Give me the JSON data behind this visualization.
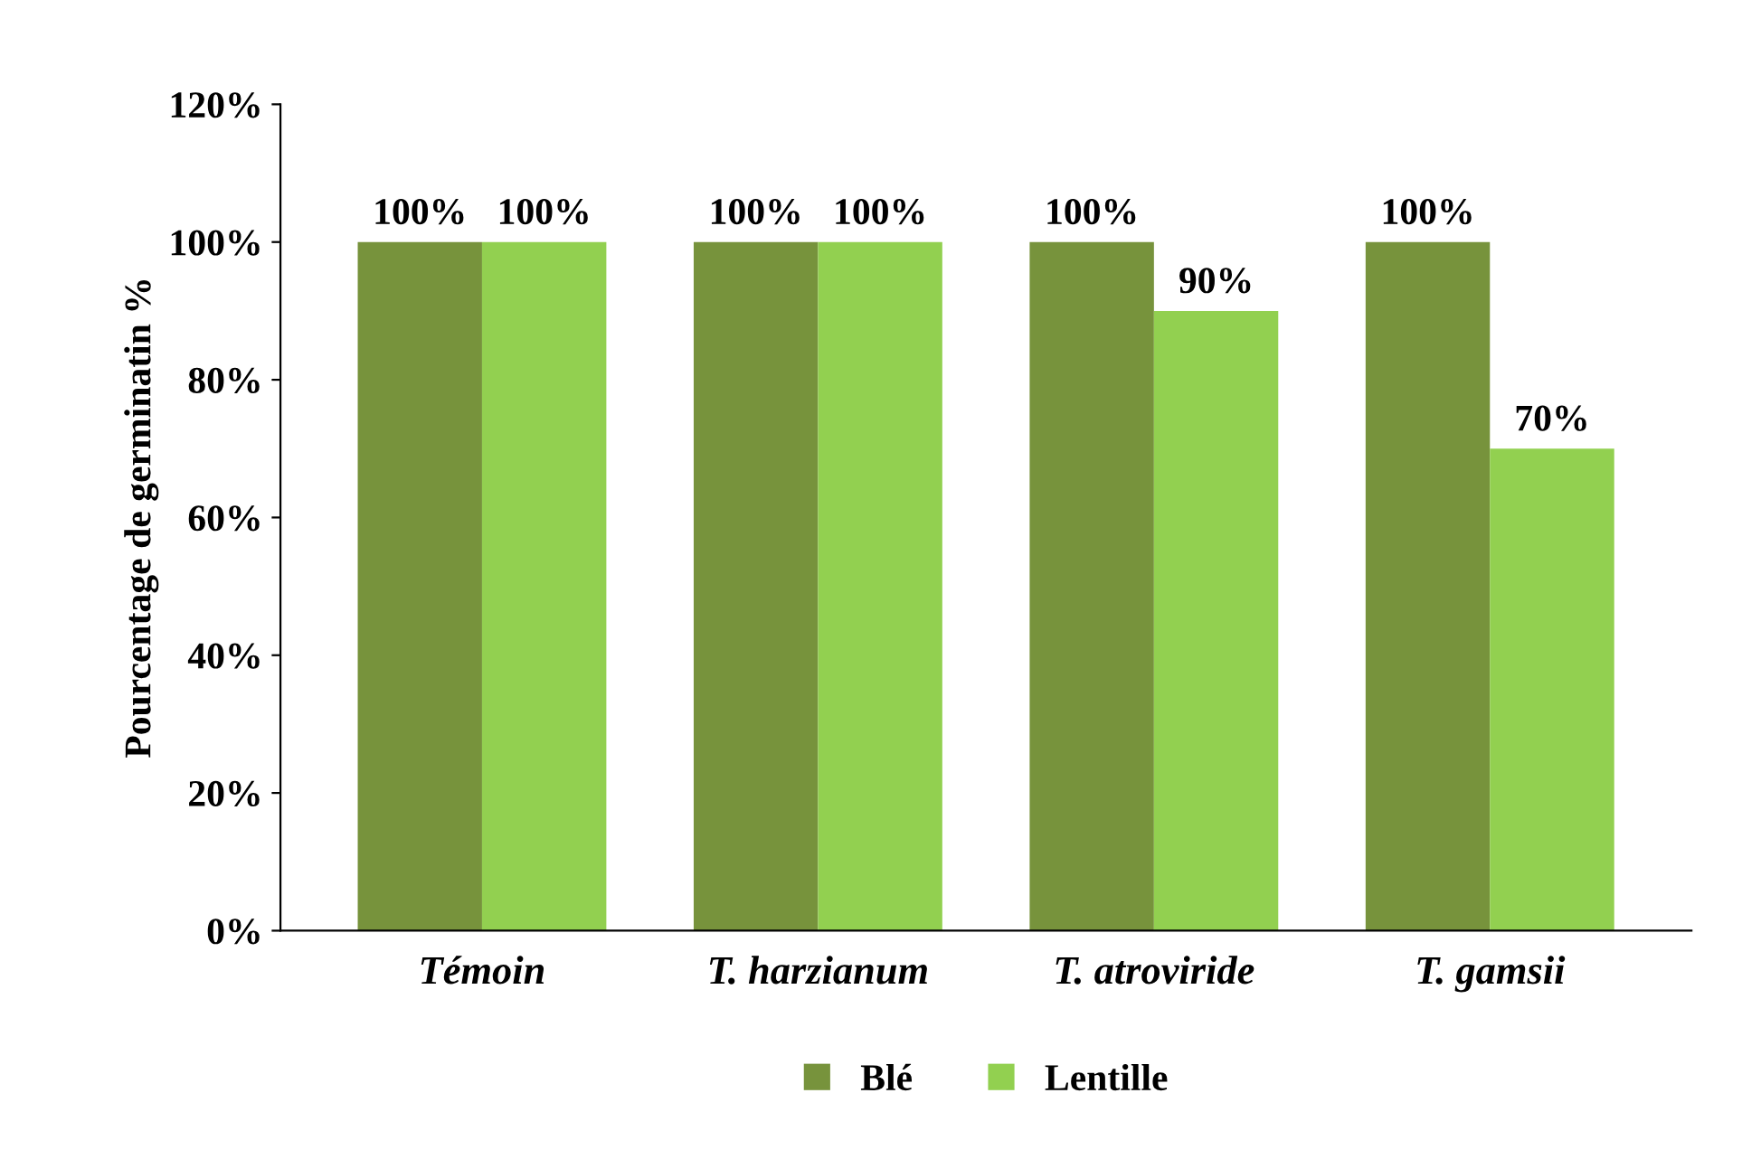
{
  "chart_data": {
    "type": "bar",
    "ylabel": "Pourcentage de germinatin %",
    "categories": [
      "Témoin",
      "T. harzianum",
      "T. atroviride",
      "T. gamsii"
    ],
    "series": [
      {
        "name": "Blé",
        "color": "#77933c",
        "values": [
          100,
          100,
          100,
          100
        ],
        "value_labels": [
          "100%",
          "100%",
          "100%",
          "100%"
        ]
      },
      {
        "name": "Lentille",
        "color": "#92d050",
        "values": [
          100,
          100,
          90,
          70
        ],
        "value_labels": [
          "100%",
          "100%",
          "90%",
          "70%"
        ]
      }
    ],
    "ylim": [
      0,
      120
    ],
    "yticks": [
      {
        "value": 0,
        "label": "0%"
      },
      {
        "value": 20,
        "label": "20%"
      },
      {
        "value": 40,
        "label": "40%"
      },
      {
        "value": 60,
        "label": "60%"
      },
      {
        "value": 80,
        "label": "80%"
      },
      {
        "value": 100,
        "label": "100%"
      },
      {
        "value": 120,
        "label": "120%"
      }
    ],
    "grid": false,
    "legend": "bottom"
  }
}
